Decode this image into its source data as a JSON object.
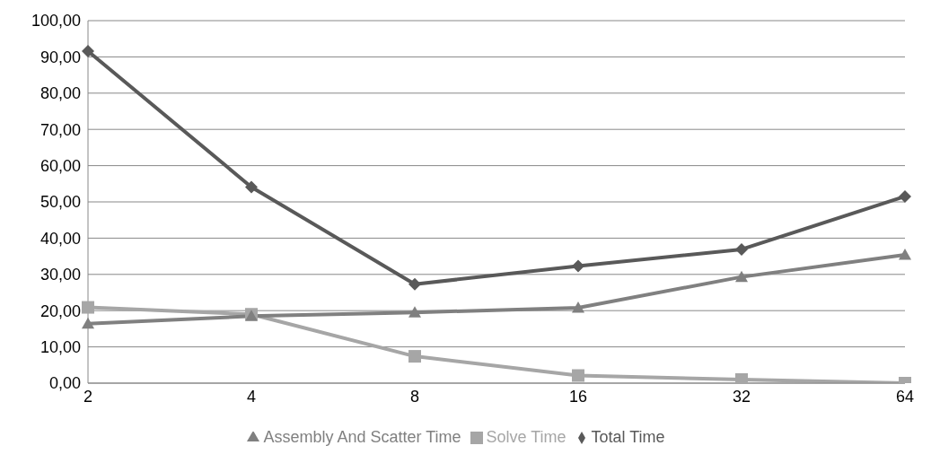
{
  "chart_data": {
    "type": "line",
    "categories": [
      "2",
      "4",
      "8",
      "16",
      "32",
      "64"
    ],
    "series": [
      {
        "name": "Total Time",
        "color": "#595959",
        "marker": "diamond",
        "values": [
          91.6,
          54.1,
          27.3,
          32.3,
          36.9,
          51.5
        ]
      },
      {
        "name": "Solve Time",
        "color": "#a6a6a6",
        "marker": "square",
        "values": [
          20.9,
          19.0,
          7.4,
          2.1,
          1.0,
          0.0
        ]
      },
      {
        "name": "Assembly And Scatter Time",
        "color": "#808080",
        "marker": "triangle",
        "values": [
          16.4,
          18.5,
          19.5,
          20.8,
          29.3,
          35.4
        ]
      }
    ],
    "ylim": [
      0,
      100
    ],
    "yticks": [
      {
        "value": 0,
        "label": "0,00"
      },
      {
        "value": 10,
        "label": "10,00"
      },
      {
        "value": 20,
        "label": "20,00"
      },
      {
        "value": 30,
        "label": "30,00"
      },
      {
        "value": 40,
        "label": "40,00"
      },
      {
        "value": 50,
        "label": "50,00"
      },
      {
        "value": 60,
        "label": "60,00"
      },
      {
        "value": 70,
        "label": "70,00"
      },
      {
        "value": 80,
        "label": "80,00"
      },
      {
        "value": 90,
        "label": "90,00"
      },
      {
        "value": 100,
        "label": "100,00"
      }
    ],
    "grid": "y",
    "legend": "bottom",
    "line_style": "solid"
  }
}
